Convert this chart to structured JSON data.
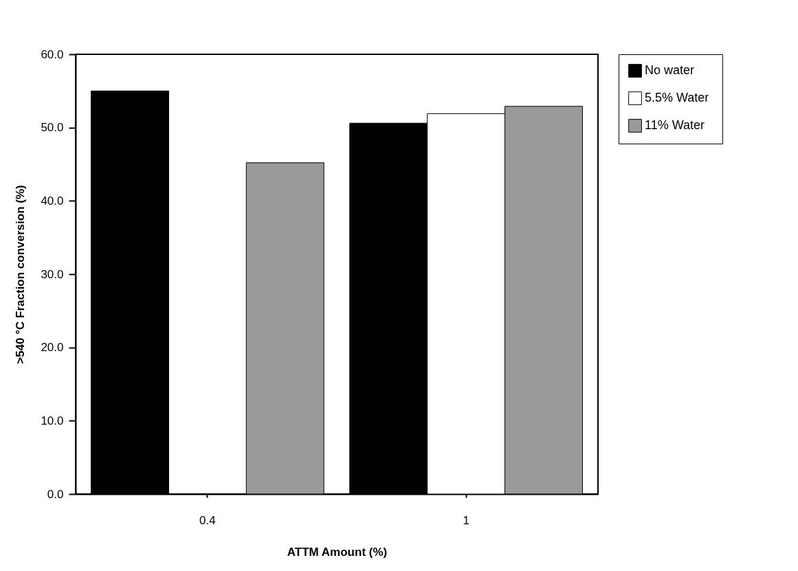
{
  "chart_data": {
    "type": "bar",
    "xlabel": "ATTM  Amount  (%)",
    "ylabel": ">540  °C  Fraction  conversion  (%)",
    "categories": [
      "0.4",
      "1"
    ],
    "series": [
      {
        "name": "No water",
        "color": "#000000",
        "values": [
          55.0,
          50.6
        ]
      },
      {
        "name": "5.5%  Water",
        "color": "#ffffff",
        "values": [
          null,
          51.9
        ]
      },
      {
        "name": "11%  Water",
        "color": "#9a9a9a",
        "values": [
          45.2,
          52.9
        ]
      }
    ],
    "ylim": [
      0,
      60
    ],
    "yticks": [
      {
        "value": 0,
        "label": "0.0"
      },
      {
        "value": 10,
        "label": "10.0"
      },
      {
        "value": 20,
        "label": "20.0"
      },
      {
        "value": 30,
        "label": "30.0"
      },
      {
        "value": 40,
        "label": "40.0"
      },
      {
        "value": 50,
        "label": "50.0"
      },
      {
        "value": 60,
        "label": "60.0"
      }
    ],
    "grid": false,
    "legend": "right"
  }
}
